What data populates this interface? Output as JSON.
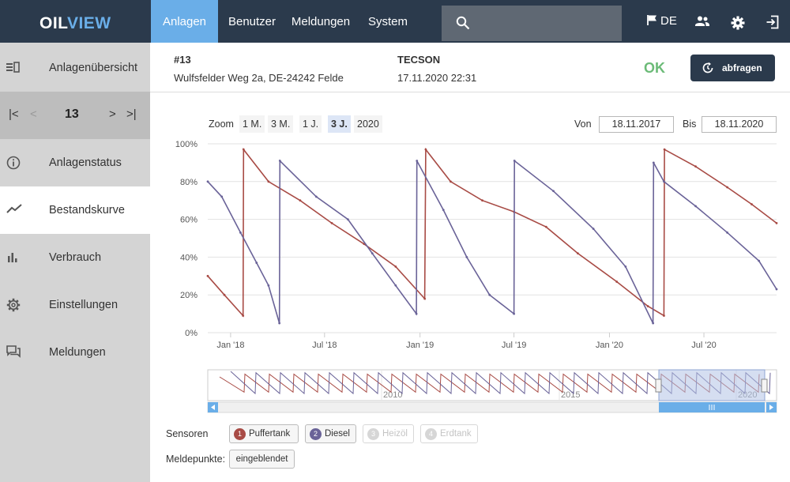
{
  "topbar": {
    "logo_part1": "OIL",
    "logo_part2": "VIEW",
    "nav": [
      "Anlagen",
      "Benutzer",
      "Meldungen",
      "System"
    ],
    "active_nav": "Anlagen",
    "search_placeholder": "",
    "language": "DE",
    "icons": [
      "search-icon",
      "flag-icon",
      "users-icon",
      "gear-icon",
      "logout-icon"
    ],
    "colors": {
      "bar": "#2b3a4c",
      "accent": "#6aaee8"
    }
  },
  "sidebar": {
    "items": [
      {
        "label": "Anlagenübersicht",
        "icon": "list-icon"
      },
      {
        "label": "Anlagenstatus",
        "icon": "info-icon"
      },
      {
        "label": "Bestandskurve",
        "icon": "trend-icon",
        "active": true
      },
      {
        "label": "Verbrauch",
        "icon": "bar-chart-icon"
      },
      {
        "label": "Einstellungen",
        "icon": "gear-icon"
      },
      {
        "label": "Meldungen",
        "icon": "messages-icon"
      }
    ],
    "pager": {
      "current": "13",
      "buttons": [
        "first-icon",
        "prev-icon",
        "next-icon",
        "last-icon"
      ]
    }
  },
  "header": {
    "id": "#13",
    "address": "Wulfsfelder Weg 2a, DE-24242 Felde",
    "vendor": "TECSON",
    "datetime": "17.11.2020 22:31",
    "status": "OK",
    "status_color": "#6cbb78",
    "query_button": "abfragen"
  },
  "controls": {
    "zoom_label": "Zoom",
    "zoom_options": [
      "1 M.",
      "3 M.",
      "1 J.",
      "3 J.",
      "2020"
    ],
    "zoom_active": "3 J.",
    "from_label": "Von",
    "from_value": "18.11.2017",
    "to_label": "Bis",
    "to_value": "18.11.2020"
  },
  "chart_data": {
    "type": "line",
    "ylim": [
      0,
      100
    ],
    "y_ticks": [
      "0%",
      "20%",
      "40%",
      "60%",
      "80%",
      "100%"
    ],
    "x_ticks": [
      "Jan '18",
      "Jul '18",
      "Jan '19",
      "Jul '19",
      "Jan '20",
      "Jul '20"
    ],
    "grid": true,
    "series": [
      {
        "name": "Puffertank",
        "color": "#a84b45",
        "points": [
          [
            "2017-11-18",
            30
          ],
          [
            "2017-12-20",
            20
          ],
          [
            "2018-01-25",
            9
          ],
          [
            "2018-01-26",
            97
          ],
          [
            "2018-03-15",
            80
          ],
          [
            "2018-05-15",
            70
          ],
          [
            "2018-07-15",
            58
          ],
          [
            "2018-09-15",
            47
          ],
          [
            "2018-11-15",
            35
          ],
          [
            "2019-01-10",
            18
          ],
          [
            "2019-01-12",
            97
          ],
          [
            "2019-03-01",
            80
          ],
          [
            "2019-05-01",
            70
          ],
          [
            "2019-07-01",
            64
          ],
          [
            "2019-09-01",
            56
          ],
          [
            "2019-11-01",
            42
          ],
          [
            "2020-01-15",
            27
          ],
          [
            "2020-03-15",
            14
          ],
          [
            "2020-04-15",
            9
          ],
          [
            "2020-04-16",
            97
          ],
          [
            "2020-06-15",
            88
          ],
          [
            "2020-08-15",
            77
          ],
          [
            "2020-10-01",
            68
          ],
          [
            "2020-11-18",
            58
          ]
        ]
      },
      {
        "name": "Diesel",
        "color": "#6a6398",
        "points": [
          [
            "2017-11-18",
            80
          ],
          [
            "2017-12-15",
            72
          ],
          [
            "2018-01-20",
            53
          ],
          [
            "2018-02-20",
            37
          ],
          [
            "2018-03-15",
            25
          ],
          [
            "2018-04-05",
            5
          ],
          [
            "2018-04-06",
            91
          ],
          [
            "2018-06-15",
            72
          ],
          [
            "2018-08-15",
            60
          ],
          [
            "2018-10-01",
            42
          ],
          [
            "2018-11-15",
            25
          ],
          [
            "2018-12-25",
            10
          ],
          [
            "2018-12-26",
            91
          ],
          [
            "2019-02-15",
            65
          ],
          [
            "2019-04-01",
            40
          ],
          [
            "2019-05-15",
            20
          ],
          [
            "2019-07-01",
            10
          ],
          [
            "2019-07-02",
            91
          ],
          [
            "2019-09-15",
            75
          ],
          [
            "2019-12-01",
            55
          ],
          [
            "2020-02-01",
            35
          ],
          [
            "2020-03-25",
            5
          ],
          [
            "2020-03-26",
            90
          ],
          [
            "2020-04-15",
            80
          ],
          [
            "2020-06-15",
            67
          ],
          [
            "2020-08-15",
            53
          ],
          [
            "2020-10-15",
            38
          ],
          [
            "2020-11-18",
            23
          ]
        ]
      }
    ],
    "navigator": {
      "x_ticks": [
        "2010",
        "2015",
        "2020"
      ]
    }
  },
  "sensors": {
    "label": "Sensoren",
    "items": [
      {
        "num": "1",
        "label": "Puffertank",
        "color": "#a84b45",
        "enabled": true
      },
      {
        "num": "2",
        "label": "Diesel",
        "color": "#6a6398",
        "enabled": true
      },
      {
        "num": "3",
        "label": "Heizöl",
        "enabled": false
      },
      {
        "num": "4",
        "label": "Erdtank",
        "enabled": false
      }
    ]
  },
  "meldepunkte": {
    "label": "Meldepunkte:",
    "button": "eingeblendet"
  }
}
